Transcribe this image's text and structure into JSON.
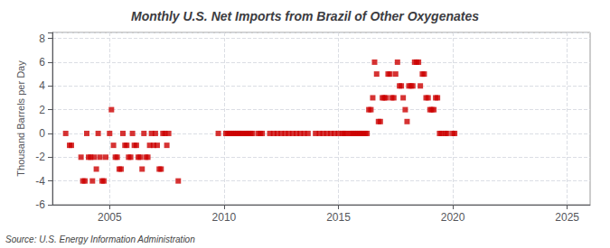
{
  "chart_data": {
    "type": "scatter",
    "title": "Monthly U.S. Net Imports from Brazil of Other Oxygenates",
    "ylabel": "Thousand Barrels per Day",
    "annotation": "Source: U.S. Energy Information Administration",
    "color": "#cc0000",
    "marker": "square",
    "grid": true,
    "xlim": [
      2002.5,
      2026
    ],
    "ylim": [
      -6,
      8.5
    ],
    "xticks": [
      2005,
      2010,
      2015,
      2020,
      2025
    ],
    "yticks": [
      -6,
      -4,
      -2,
      0,
      2,
      4,
      6,
      8
    ],
    "x": [
      2003.08,
      2003.25,
      2003.33,
      2003.75,
      2003.83,
      2003.92,
      2004.0,
      2004.08,
      2004.17,
      2004.25,
      2004.33,
      2004.42,
      2004.5,
      2004.58,
      2004.67,
      2004.75,
      2004.83,
      2005.0,
      2005.08,
      2005.17,
      2005.25,
      2005.33,
      2005.42,
      2005.5,
      2005.58,
      2005.67,
      2005.75,
      2005.83,
      2005.92,
      2006.0,
      2006.08,
      2006.17,
      2006.25,
      2006.33,
      2006.42,
      2006.5,
      2006.58,
      2006.67,
      2006.75,
      2006.83,
      2006.92,
      2007.0,
      2007.08,
      2007.17,
      2007.25,
      2007.33,
      2007.42,
      2007.5,
      2007.58,
      2008.0,
      2009.75,
      2010.08,
      2010.17,
      2010.25,
      2010.33,
      2010.42,
      2010.5,
      2010.58,
      2010.67,
      2010.75,
      2010.83,
      2010.92,
      2011.0,
      2011.08,
      2011.17,
      2011.25,
      2011.5,
      2011.58,
      2011.67,
      2012.0,
      2012.17,
      2012.33,
      2012.5,
      2012.67,
      2012.83,
      2013.0,
      2013.17,
      2013.33,
      2013.5,
      2013.67,
      2014.0,
      2014.17,
      2014.33,
      2014.5,
      2014.67,
      2014.83,
      2015.0,
      2015.17,
      2015.25,
      2015.33,
      2015.5,
      2015.58,
      2015.67,
      2015.75,
      2015.83,
      2015.92,
      2016.0,
      2016.08,
      2016.17,
      2016.25,
      2016.33,
      2016.42,
      2016.5,
      2016.58,
      2016.67,
      2016.75,
      2016.83,
      2016.92,
      2017.0,
      2017.08,
      2017.17,
      2017.25,
      2017.33,
      2017.42,
      2017.5,
      2017.58,
      2017.67,
      2017.75,
      2017.83,
      2017.92,
      2018.0,
      2018.08,
      2018.17,
      2018.25,
      2018.33,
      2018.42,
      2018.5,
      2018.58,
      2018.67,
      2018.75,
      2018.83,
      2018.92,
      2019.0,
      2019.08,
      2019.17,
      2019.25,
      2019.33,
      2019.42,
      2019.5,
      2019.67,
      2019.75,
      2020.0,
      2020.08
    ],
    "values": [
      0,
      -1,
      -1,
      -2,
      -4,
      -4,
      0,
      -2,
      -2,
      -4,
      -2,
      -3,
      0,
      -2,
      -4,
      -4,
      -2,
      0,
      2,
      -1,
      -2,
      -2,
      -3,
      -3,
      0,
      -1,
      -1,
      -2,
      -2,
      0,
      -1,
      -1,
      -2,
      -2,
      -3,
      0,
      -2,
      -2,
      -1,
      0,
      -1,
      0,
      -1,
      -3,
      -3,
      0,
      0,
      -1,
      0,
      -4,
      0,
      0,
      0,
      0,
      0,
      0,
      0,
      0,
      0,
      0,
      0,
      0,
      0,
      0,
      0,
      0,
      0,
      0,
      0,
      0,
      0,
      0,
      0,
      0,
      0,
      0,
      0,
      0,
      0,
      0,
      0,
      0,
      0,
      0,
      0,
      0,
      0,
      0,
      0,
      0,
      0,
      0,
      0,
      0,
      0,
      0,
      0,
      0,
      0,
      0,
      2,
      2,
      3,
      6,
      5,
      1,
      1,
      3,
      3,
      3,
      5,
      5,
      3,
      3,
      5,
      6,
      4,
      4,
      3,
      2,
      1,
      4,
      4,
      4,
      6,
      6,
      6,
      4,
      5,
      5,
      3,
      3,
      2,
      2,
      2,
      3,
      3,
      0,
      0,
      0,
      0,
      0,
      0
    ]
  }
}
